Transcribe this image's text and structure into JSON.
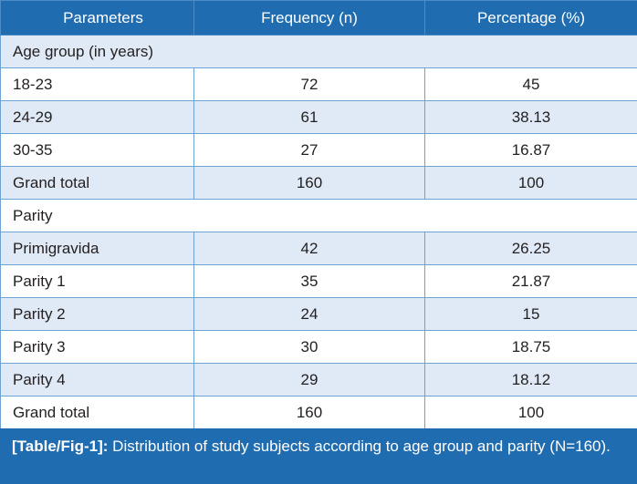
{
  "table": {
    "headers": [
      "Parameters",
      "Frequency (n)",
      "Percentage (%)"
    ],
    "sections": [
      {
        "title": "Age group (in years)",
        "rows": [
          [
            "18-23",
            "72",
            "45"
          ],
          [
            "24-29",
            "61",
            "38.13"
          ],
          [
            "30-35",
            "27",
            "16.87"
          ],
          [
            "Grand total",
            "160",
            "100"
          ]
        ]
      },
      {
        "title": "Parity",
        "rows": [
          [
            "Primigravida",
            "42",
            "26.25"
          ],
          [
            "Parity 1",
            "35",
            "21.87"
          ],
          [
            "Parity 2",
            "24",
            "15"
          ],
          [
            "Parity 3",
            "30",
            "18.75"
          ],
          [
            "Parity 4",
            "29",
            "18.12"
          ],
          [
            "Grand total",
            "160",
            "100"
          ]
        ]
      }
    ]
  },
  "caption": {
    "ref": "[Table/Fig-1]:",
    "text": " Distribution of study subjects according to age group and parity (N=160)."
  },
  "colors": {
    "header_bg": "#1f6cb0",
    "stripe_bg": "#dfeaf6",
    "border": "#6fa3d4"
  }
}
